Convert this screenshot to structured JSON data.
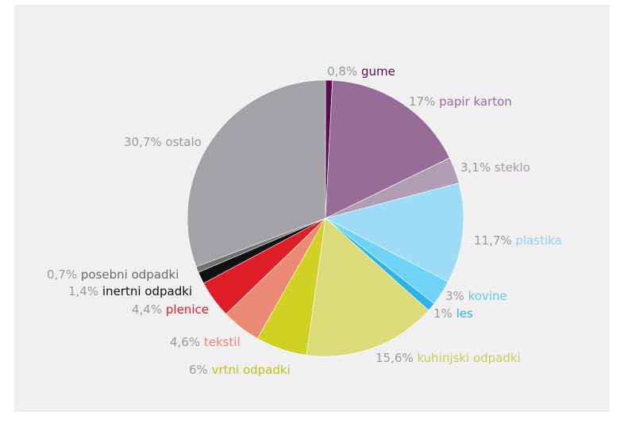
{
  "chart_data": {
    "type": "pie",
    "title": "",
    "start_angle_deg": 0,
    "direction": "clockwise",
    "slices": [
      {
        "pct_label": "0,8%",
        "name": "gume",
        "value": 0.8,
        "color": "#5c0a52",
        "label_color": "#5c0a52"
      },
      {
        "pct_label": "17%",
        "name": "papir karton",
        "value": 17,
        "color": "#976d98",
        "label_color": "#976d98"
      },
      {
        "pct_label": "3,1%",
        "name": "steklo",
        "value": 3.1,
        "color": "#b29db6",
        "label_color": "#a898ac"
      },
      {
        "pct_label": "11,7%",
        "name": "plastika",
        "value": 11.7,
        "color": "#9edbf6",
        "label_color": "#8fd3f0"
      },
      {
        "pct_label": "3%",
        "name": "kovine",
        "value": 3,
        "color": "#6ed3f5",
        "label_color": "#5ecbef"
      },
      {
        "pct_label": "1%",
        "name": "les",
        "value": 1,
        "color": "#2bb5ea",
        "label_color": "#2bb5ea"
      },
      {
        "pct_label": "15,6%",
        "name": "kuhinjski odpadki",
        "value": 15.6,
        "color": "#dcdb7a",
        "label_color": "#cccc5c"
      },
      {
        "pct_label": "6%",
        "name": "vrtni odpadki",
        "value": 6,
        "color": "#cfd222",
        "label_color": "#bfc21a"
      },
      {
        "pct_label": "4,6%",
        "name": "tekstil",
        "value": 4.6,
        "color": "#eb8a74",
        "label_color": "#e6866e"
      },
      {
        "pct_label": "4,4%",
        "name": "plenice",
        "value": 4.4,
        "color": "#dd1e26",
        "label_color": "#d81e2a"
      },
      {
        "pct_label": "1,4%",
        "name": "inertni odpadki",
        "value": 1.4,
        "color": "#111111",
        "label_color": "#111111"
      },
      {
        "pct_label": "0,7%",
        "name": "posebni odpadki",
        "value": 0.7,
        "color": "#707070",
        "label_color": "#6a6a6a"
      },
      {
        "pct_label": "30,7%",
        "name": "ostalo",
        "value": 30.7,
        "color": "#a2a3a6",
        "label_color": "#9a9a9a"
      }
    ]
  }
}
